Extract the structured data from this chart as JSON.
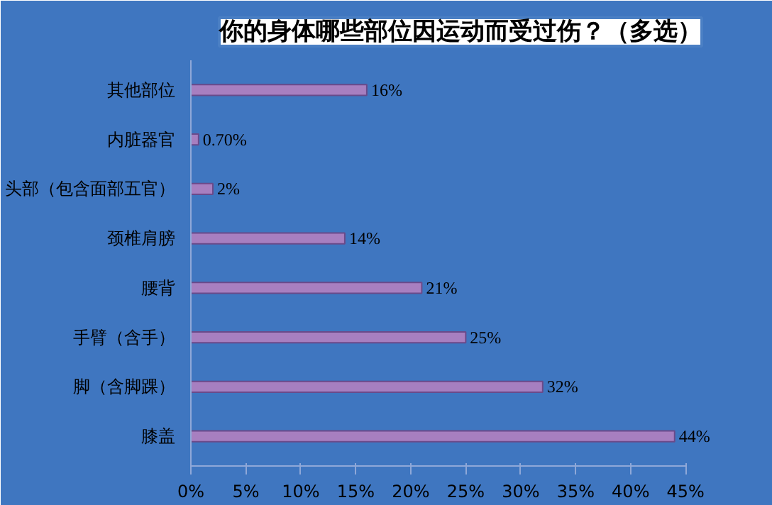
{
  "chart_data": {
    "type": "bar",
    "orientation": "horizontal",
    "title": "你的身体哪些部位因运动而受过伤？（多选）",
    "categories": [
      "其他部位",
      "内脏器官",
      "头部（包含面部五官）",
      "颈椎肩膀",
      "腰背",
      "手臂（含手）",
      "脚（含脚踝）",
      "膝盖"
    ],
    "values": [
      16,
      0.7,
      2,
      14,
      21,
      25,
      32,
      44
    ],
    "value_labels": [
      "16%",
      "0.70%",
      "2%",
      "14%",
      "21%",
      "25%",
      "32%",
      "44%"
    ],
    "color": "#a77fc0",
    "xlim": [
      0,
      45
    ],
    "xticks": [
      {
        "value": 0,
        "label": "0%"
      },
      {
        "value": 5,
        "label": "5%"
      },
      {
        "value": 10,
        "label": "10%"
      },
      {
        "value": 15,
        "label": "15%"
      },
      {
        "value": 20,
        "label": "20%"
      },
      {
        "value": 25,
        "label": "25%"
      },
      {
        "value": 30,
        "label": "30%"
      },
      {
        "value": 35,
        "label": "35%"
      },
      {
        "value": 40,
        "label": "40%"
      },
      {
        "value": 45,
        "label": "45%"
      }
    ],
    "grid": false
  }
}
